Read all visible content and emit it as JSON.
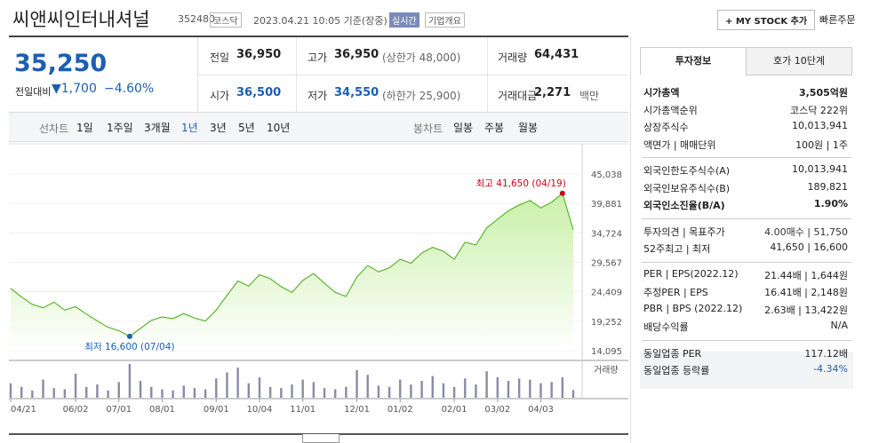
{
  "header": {
    "title": "씨앤씨인터내셔널",
    "code": "352480",
    "market": "코스닥",
    "time": "2023.04.21 10:05 기준(장중)",
    "realtime": "실시간",
    "overview": "기업개요",
    "mystock": "+ MY STOCK 추가",
    "quick_order": "빠른주문"
  },
  "quote": {
    "price": "35,250",
    "change_label": "전일대비",
    "change": "▼1,700",
    "change_pct": "−4.60%"
  },
  "stats": [
    [
      {
        "label": "전일",
        "value": "36,950",
        "note": ""
      },
      {
        "label": "고가",
        "value": "36,950",
        "note": "(상한가 48,000)"
      },
      {
        "label": "거래량",
        "value": "64,431",
        "note": ""
      }
    ],
    [
      {
        "label": "시가",
        "value": "36,500",
        "note": ""
      },
      {
        "label": "저가",
        "value": "34,550",
        "note": "(하한가 25,900)"
      },
      {
        "label": "거래대금",
        "value": "2,271",
        "note": "백만"
      }
    ]
  ],
  "periods": {
    "line_label": "선차트",
    "line": [
      "1일",
      "1주일",
      "3개월",
      "1년",
      "3년",
      "5년",
      "10년"
    ],
    "candle_label": "봉차트",
    "candle": [
      "일봉",
      "주봉",
      "월봉"
    ]
  },
  "chart_data": {
    "type": "line",
    "categories": [
      "04/21",
      null,
      null,
      null,
      null,
      null,
      "06/02",
      null,
      null,
      null,
      "07/01",
      null,
      null,
      null,
      "08/01",
      null,
      null,
      null,
      null,
      "09/01",
      null,
      null,
      null,
      "10/04",
      null,
      null,
      null,
      "11/01",
      null,
      null,
      null,
      null,
      "12/01",
      null,
      null,
      null,
      "01/02",
      null,
      null,
      null,
      null,
      "02/01",
      null,
      null,
      null,
      "03/02",
      null,
      null,
      null,
      "04/03",
      null,
      null,
      null
    ],
    "values": [
      25000,
      23500,
      22200,
      21600,
      22600,
      21200,
      21800,
      20500,
      19300,
      18200,
      17600,
      16600,
      18000,
      19400,
      20000,
      19700,
      20600,
      19800,
      19300,
      21200,
      23800,
      26300,
      25400,
      27400,
      26700,
      25300,
      24300,
      26400,
      27600,
      25900,
      24300,
      23600,
      27000,
      29000,
      27900,
      28600,
      30100,
      29400,
      31200,
      32200,
      31500,
      30100,
      33100,
      32600,
      35600,
      37100,
      38600,
      39600,
      40400,
      39100,
      40100,
      41650,
      35250
    ],
    "volume_label": "거래량",
    "volume": [
      120000,
      90000,
      60000,
      150000,
      80000,
      70000,
      200000,
      90000,
      110000,
      60000,
      130000,
      280000,
      140000,
      90000,
      70000,
      60000,
      100000,
      80000,
      70000,
      160000,
      210000,
      250000,
      120000,
      170000,
      90000,
      80000,
      110000,
      150000,
      130000,
      80000,
      70000,
      90000,
      230000,
      190000,
      100000,
      90000,
      150000,
      110000,
      140000,
      180000,
      120000,
      90000,
      160000,
      110000,
      220000,
      170000,
      140000,
      160000,
      150000,
      120000,
      130000,
      170000,
      64431
    ],
    "ylim": [
      14095,
      45038
    ],
    "yticks": [
      {
        "value": 45038,
        "label": "45,038"
      },
      {
        "value": 39881,
        "label": "39,881"
      },
      {
        "value": 34724,
        "label": "34,724"
      },
      {
        "value": 29567,
        "label": "29,567"
      },
      {
        "value": 24409,
        "label": "24,409"
      },
      {
        "value": 19252,
        "label": "19,252"
      },
      {
        "value": 14095,
        "label": "14,095"
      }
    ],
    "color": "#5cb531",
    "fill": "#c9f0a8",
    "volume_color": "#8a8aa8",
    "grid": true,
    "annotations": [
      {
        "text": "최고 41,650 (04/19)",
        "index": 51,
        "color": "#d0021b"
      },
      {
        "text": "최저 16,600 (07/04)",
        "index": 11,
        "color": "#1a5fb4"
      }
    ]
  },
  "panel": {
    "tabs": [
      "투자정보",
      "호가 10단계"
    ],
    "groups": [
      [
        {
          "label": "시가총액",
          "value": "3,505억원"
        },
        {
          "label": "시가총액순위",
          "value": "코스닥 222위"
        },
        {
          "label": "상장주식수",
          "value": "10,013,941"
        },
        {
          "label": "액면가 | 매매단위",
          "value": "100원 | 1주"
        }
      ],
      [
        {
          "label": "외국인한도주식수(A)",
          "value": "10,013,941"
        },
        {
          "label": "외국인보유주식수(B)",
          "value": "189,821"
        },
        {
          "label": "외국인소진율(B/A)",
          "value": "1.90%"
        }
      ],
      [
        {
          "label": "투자의견 | 목표주가",
          "value": "4.00매수 | 51,750"
        },
        {
          "label": "52주최고 | 최저",
          "value": "41,650 | 16,600"
        }
      ],
      [
        {
          "label": "PER | EPS(2022.12)",
          "value": "21.44배 | 1,644원"
        },
        {
          "label": "추정PER | EPS",
          "value": "16.41배 | 2,148원"
        },
        {
          "label": "PBR | BPS (2022.12)",
          "value": "2.63배 | 13,422원"
        },
        {
          "label": "배당수익률",
          "value": "N/A"
        }
      ],
      [
        {
          "label": "동일업종 PER",
          "value": "117.12배"
        },
        {
          "label": "동일업종 등락률",
          "value": "-4.34%"
        }
      ]
    ]
  }
}
